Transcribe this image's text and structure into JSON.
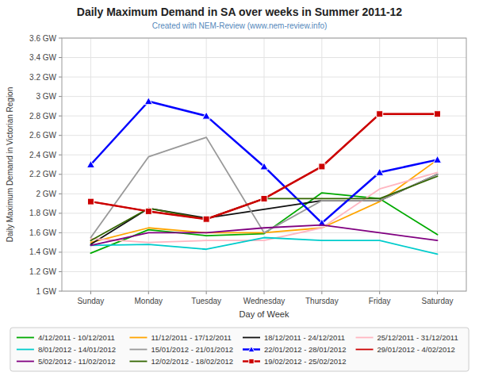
{
  "chart_data": {
    "type": "line",
    "title": "Daily Maximum Demand in SA over weeks in Summer 2011-12",
    "subtitle": "Created with NEM-Review (www.nem-review.info)",
    "xlabel": "Day of Week",
    "ylabel": "Daily Maximum Demand in Victorian Region",
    "categories": [
      "Sunday",
      "Monday",
      "Tuesday",
      "Wednesday",
      "Thursday",
      "Friday",
      "Saturday"
    ],
    "ylim": [
      1.0,
      3.6
    ],
    "yticks": [
      {
        "value": 1.0,
        "label": "1 GW"
      },
      {
        "value": 1.2,
        "label": "1.2 GW"
      },
      {
        "value": 1.4,
        "label": "1.4 GW"
      },
      {
        "value": 1.6,
        "label": "1.6 GW"
      },
      {
        "value": 1.8,
        "label": "1.8 GW"
      },
      {
        "value": 2.0,
        "label": "2 GW"
      },
      {
        "value": 2.2,
        "label": "2.2 GW"
      },
      {
        "value": 2.4,
        "label": "2.4 GW"
      },
      {
        "value": 2.6,
        "label": "2.6 GW"
      },
      {
        "value": 2.8,
        "label": "2.8 GW"
      },
      {
        "value": 3.0,
        "label": "3 GW"
      },
      {
        "value": 3.2,
        "label": "3.2 GW"
      },
      {
        "value": 3.4,
        "label": "3.4 GW"
      },
      {
        "value": 3.6,
        "label": "3.6 GW"
      }
    ],
    "grid": true,
    "legend": "bottom",
    "series": [
      {
        "name": "4/12/2011 - 10/12/2011",
        "color": "#00AA00",
        "values": [
          1.39,
          1.63,
          1.57,
          1.59,
          2.01,
          1.95,
          1.58
        ]
      },
      {
        "name": "11/12/2011 - 17/12/2011",
        "color": "#FFA500",
        "values": [
          1.5,
          1.65,
          1.6,
          1.6,
          1.65,
          1.92,
          2.35
        ]
      },
      {
        "name": "18/12/2011 - 24/12/2011",
        "color": "#111111",
        "values": [
          1.48,
          1.85,
          1.75,
          1.84,
          1.93,
          1.93,
          2.2
        ]
      },
      {
        "name": "25/12/2011 - 31/12/2011",
        "color": "#FFB6C1",
        "values": [
          1.54,
          1.5,
          1.52,
          1.52,
          1.65,
          2.05,
          2.22
        ]
      },
      {
        "name": "8/01/2012 - 14/01/2012",
        "color": "#00CCCC",
        "values": [
          1.47,
          1.48,
          1.43,
          1.55,
          1.52,
          1.52,
          1.38
        ]
      },
      {
        "name": "15/01/2012 - 21/01/2012",
        "color": "#999999",
        "values": [
          1.55,
          2.38,
          2.58,
          1.6,
          1.93,
          1.93,
          2.2
        ]
      },
      {
        "name": "22/01/2012 - 28/01/2012",
        "color": "#0000FF",
        "marker": "triangle",
        "values": [
          2.3,
          2.95,
          2.8,
          2.28,
          1.7,
          2.22,
          2.35
        ]
      },
      {
        "name": "29/01/2012 - 4/02/2012",
        "color": "#CC0000",
        "values": [
          1.92,
          1.82,
          1.74,
          1.95,
          2.28,
          2.82,
          2.82
        ]
      },
      {
        "name": "5/02/2012 - 11/02/2012",
        "color": "#800080",
        "values": [
          1.47,
          1.6,
          1.6,
          1.65,
          1.68,
          1.6,
          1.52
        ]
      },
      {
        "name": "12/02/2012 - 18/02/2012",
        "color": "#336600",
        "values": [
          1.52,
          1.85,
          1.74,
          1.95,
          1.95,
          1.95,
          2.18
        ]
      },
      {
        "name": "19/02/2012 - 25/02/2012",
        "color": "#CC0000",
        "marker": "square",
        "values": [
          1.92,
          1.82,
          1.74,
          1.95,
          2.28,
          2.82,
          2.82
        ]
      }
    ]
  }
}
